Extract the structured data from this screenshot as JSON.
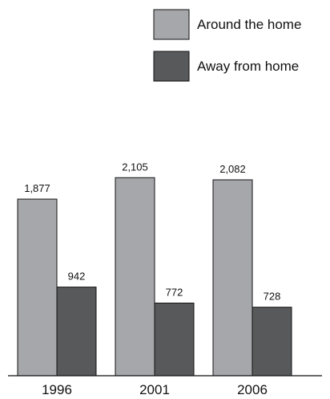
{
  "chart_data": {
    "type": "bar",
    "categories": [
      "1996",
      "2001",
      "2006"
    ],
    "series": [
      {
        "name": "Around the home",
        "values": [
          1877,
          2105,
          2082
        ],
        "labels": [
          "1,877",
          "2,105",
          "2,082"
        ],
        "color": "#a6a7ab"
      },
      {
        "name": "Away from home",
        "values": [
          942,
          772,
          728
        ],
        "labels": [
          "942",
          "772",
          "728"
        ],
        "color": "#58595b"
      }
    ],
    "legend_position": "top-right",
    "grid": false
  }
}
